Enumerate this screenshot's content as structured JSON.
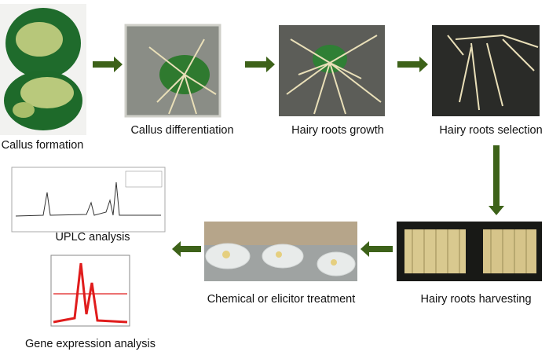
{
  "nodes": [
    {
      "label": "Callus formation"
    },
    {
      "label": "Callus differentiation"
    },
    {
      "label": "Hairy roots growth"
    },
    {
      "label": "Hairy roots selection"
    },
    {
      "label": "Hairy roots harvesting"
    },
    {
      "label": "Chemical or elicitor treatment"
    },
    {
      "label": "UPLC analysis"
    },
    {
      "label": "Gene expression analysis"
    }
  ]
}
